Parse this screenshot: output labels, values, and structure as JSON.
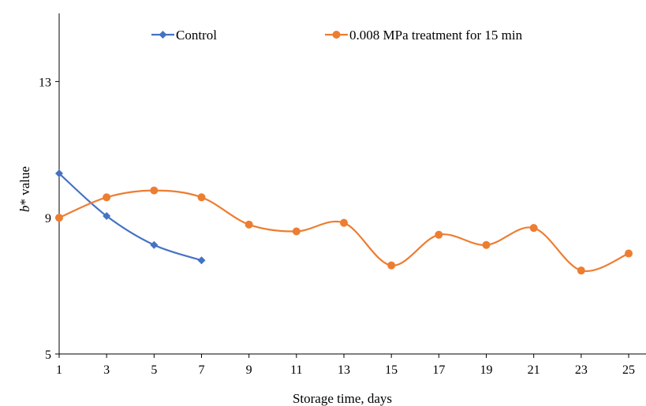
{
  "chart_data": {
    "type": "line",
    "title": "",
    "xlabel": "Storage time, days",
    "ylabel_italic": "b",
    "ylabel_rest": "* value",
    "x": [
      1,
      3,
      5,
      7,
      9,
      11,
      13,
      15,
      17,
      19,
      21,
      23,
      25
    ],
    "x_ticks": [
      "1",
      "3",
      "5",
      "7",
      "9",
      "11",
      "13",
      "15",
      "17",
      "19",
      "21",
      "23",
      "25"
    ],
    "ylim": [
      5,
      15
    ],
    "y_ticks": [
      5,
      9,
      13
    ],
    "y_tick_labels": [
      "5",
      "9",
      "13"
    ],
    "grid": false,
    "smooth": true,
    "legend_position": "top",
    "series": [
      {
        "name": "Control",
        "color": "#4472C4",
        "marker": "diamond",
        "x": [
          1,
          3,
          5,
          7
        ],
        "values": [
          10.3,
          9.05,
          8.2,
          7.75
        ]
      },
      {
        "name": "0.008 MPa treatment for 15 min",
        "color": "#ED7D31",
        "marker": "circle",
        "x": [
          1,
          3,
          5,
          7,
          9,
          11,
          13,
          15,
          17,
          19,
          21,
          23,
          25
        ],
        "values": [
          9.0,
          9.6,
          9.8,
          9.6,
          8.8,
          8.6,
          8.85,
          7.6,
          8.5,
          8.2,
          8.7,
          7.45,
          7.95
        ]
      }
    ]
  }
}
